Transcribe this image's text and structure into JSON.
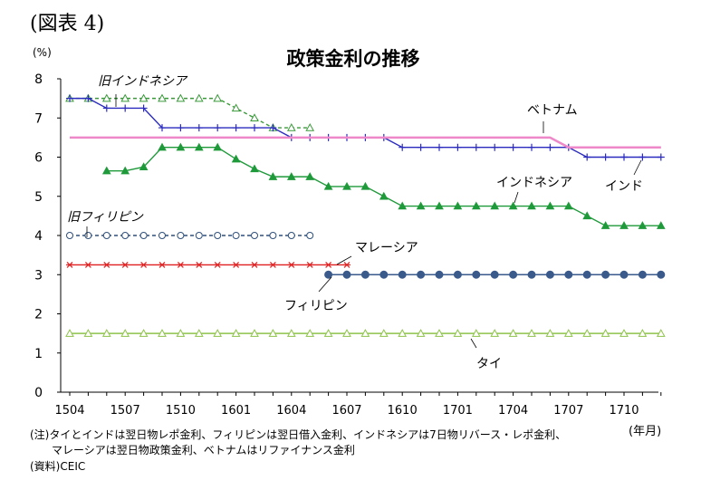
{
  "figure_label": "(図表 4)",
  "unit_y": "(%)",
  "unit_x": "(年月)",
  "notes": [
    "(注)タイとインドは翌日物レポ金利、フィリピンは翌日借入金利、インドネシアは7日物リバース・レポ金利、",
    "マレーシアは翌日物政策金利、ベトナムはリファイナンス金利",
    "(資料)CEIC"
  ],
  "chart_data": {
    "type": "line",
    "title": "政策金利の推移",
    "xlabel": "",
    "ylabel": "(%)",
    "ylim": [
      0,
      8
    ],
    "yticks": [
      0,
      1,
      2,
      3,
      4,
      5,
      6,
      7,
      8
    ],
    "x_start": "1504",
    "x_end": "1712",
    "x_tick_labels": [
      "1504",
      "1507",
      "1510",
      "1601",
      "1604",
      "1607",
      "1610",
      "1701",
      "1704",
      "1707",
      "1710"
    ],
    "grid": false,
    "series": [
      {
        "name": "旧インドネシア",
        "color": "#3a9a3a",
        "dash": true,
        "marker": "open-triangle",
        "x": [
          "1504",
          "1505",
          "1506",
          "1507",
          "1508",
          "1509",
          "1510",
          "1511",
          "1512",
          "1601",
          "1602",
          "1603",
          "1604",
          "1605"
        ],
        "values": [
          7.5,
          7.5,
          7.5,
          7.5,
          7.5,
          7.5,
          7.5,
          7.5,
          7.5,
          7.25,
          7.0,
          6.75,
          6.75,
          6.75
        ]
      },
      {
        "name": "インド",
        "color": "#2b2bbf",
        "dash": false,
        "marker": "plus",
        "x": [
          "1504",
          "1505",
          "1506",
          "1507",
          "1508",
          "1509",
          "1510",
          "1511",
          "1512",
          "1601",
          "1602",
          "1603",
          "1604",
          "1605",
          "1606",
          "1607",
          "1608",
          "1609",
          "1610",
          "1611",
          "1612",
          "1701",
          "1702",
          "1703",
          "1704",
          "1705",
          "1706",
          "1707",
          "1708",
          "1709",
          "1710",
          "1711",
          "1712"
        ],
        "values": [
          7.5,
          7.5,
          7.25,
          7.25,
          7.25,
          6.75,
          6.75,
          6.75,
          6.75,
          6.75,
          6.75,
          6.75,
          6.5,
          6.5,
          6.5,
          6.5,
          6.5,
          6.5,
          6.25,
          6.25,
          6.25,
          6.25,
          6.25,
          6.25,
          6.25,
          6.25,
          6.25,
          6.25,
          6.0,
          6.0,
          6.0,
          6.0,
          6.0
        ]
      },
      {
        "name": "ベトナム",
        "color": "#ee88c8",
        "dash": false,
        "marker": "none",
        "x": [
          "1504",
          "1505",
          "1506",
          "1507",
          "1508",
          "1509",
          "1510",
          "1511",
          "1512",
          "1601",
          "1602",
          "1603",
          "1604",
          "1605",
          "1606",
          "1607",
          "1608",
          "1609",
          "1610",
          "1611",
          "1612",
          "1701",
          "1702",
          "1703",
          "1704",
          "1705",
          "1706",
          "1707",
          "1708",
          "1709",
          "1710",
          "1711",
          "1712"
        ],
        "values": [
          6.5,
          6.5,
          6.5,
          6.5,
          6.5,
          6.5,
          6.5,
          6.5,
          6.5,
          6.5,
          6.5,
          6.5,
          6.5,
          6.5,
          6.5,
          6.5,
          6.5,
          6.5,
          6.5,
          6.5,
          6.5,
          6.5,
          6.5,
          6.5,
          6.5,
          6.5,
          6.5,
          6.25,
          6.25,
          6.25,
          6.25,
          6.25,
          6.25
        ]
      },
      {
        "name": "インドネシア",
        "color": "#1f9a3a",
        "dash": false,
        "marker": "filled-triangle",
        "x": [
          "1506",
          "1507",
          "1508",
          "1509",
          "1510",
          "1511",
          "1512",
          "1601",
          "1602",
          "1603",
          "1604",
          "1605",
          "1606",
          "1607",
          "1608",
          "1609",
          "1610",
          "1611",
          "1612",
          "1701",
          "1702",
          "1703",
          "1704",
          "1705",
          "1706",
          "1707",
          "1708",
          "1709",
          "1710",
          "1711",
          "1712"
        ],
        "values": [
          5.65,
          5.65,
          5.75,
          6.25,
          6.25,
          6.25,
          6.25,
          5.95,
          5.7,
          5.5,
          5.5,
          5.5,
          5.25,
          5.25,
          5.25,
          5.0,
          4.75,
          4.75,
          4.75,
          4.75,
          4.75,
          4.75,
          4.75,
          4.75,
          4.75,
          4.75,
          4.5,
          4.25,
          4.25,
          4.25,
          4.25
        ]
      },
      {
        "name": "旧フィリピン",
        "color": "#2e4f7a",
        "dash": true,
        "marker": "open-circle",
        "x": [
          "1504",
          "1505",
          "1506",
          "1507",
          "1508",
          "1509",
          "1510",
          "1511",
          "1512",
          "1601",
          "1602",
          "1603",
          "1604",
          "1605"
        ],
        "values": [
          4.0,
          4.0,
          4.0,
          4.0,
          4.0,
          4.0,
          4.0,
          4.0,
          4.0,
          4.0,
          4.0,
          4.0,
          4.0,
          4.0
        ]
      },
      {
        "name": "マレーシア",
        "color": "#e02020",
        "dash": false,
        "marker": "asterisk",
        "x": [
          "1504",
          "1505",
          "1506",
          "1507",
          "1508",
          "1509",
          "1510",
          "1511",
          "1512",
          "1601",
          "1602",
          "1603",
          "1604",
          "1605",
          "1606",
          "1607"
        ],
        "values": [
          3.25,
          3.25,
          3.25,
          3.25,
          3.25,
          3.25,
          3.25,
          3.25,
          3.25,
          3.25,
          3.25,
          3.25,
          3.25,
          3.25,
          3.25,
          3.25
        ]
      },
      {
        "name": "フィリピン",
        "color": "#3b5a8c",
        "dash": false,
        "marker": "filled-circle",
        "x": [
          "1606",
          "1607",
          "1608",
          "1609",
          "1610",
          "1611",
          "1612",
          "1701",
          "1702",
          "1703",
          "1704",
          "1705",
          "1706",
          "1707",
          "1708",
          "1709",
          "1710",
          "1711",
          "1712"
        ],
        "values": [
          3.0,
          3.0,
          3.0,
          3.0,
          3.0,
          3.0,
          3.0,
          3.0,
          3.0,
          3.0,
          3.0,
          3.0,
          3.0,
          3.0,
          3.0,
          3.0,
          3.0,
          3.0,
          3.0
        ]
      },
      {
        "name": "タイ",
        "color": "#8ec34a",
        "dash": false,
        "marker": "open-triangle",
        "x": [
          "1504",
          "1505",
          "1506",
          "1507",
          "1508",
          "1509",
          "1510",
          "1511",
          "1512",
          "1601",
          "1602",
          "1603",
          "1604",
          "1605",
          "1606",
          "1607",
          "1608",
          "1609",
          "1610",
          "1611",
          "1612",
          "1701",
          "1702",
          "1703",
          "1704",
          "1705",
          "1706",
          "1707",
          "1708",
          "1709",
          "1710",
          "1711",
          "1712"
        ],
        "values": [
          1.5,
          1.5,
          1.5,
          1.5,
          1.5,
          1.5,
          1.5,
          1.5,
          1.5,
          1.5,
          1.5,
          1.5,
          1.5,
          1.5,
          1.5,
          1.5,
          1.5,
          1.5,
          1.5,
          1.5,
          1.5,
          1.5,
          1.5,
          1.5,
          1.5,
          1.5,
          1.5,
          1.5,
          1.5,
          1.5,
          1.5,
          1.5,
          1.5
        ]
      }
    ]
  }
}
